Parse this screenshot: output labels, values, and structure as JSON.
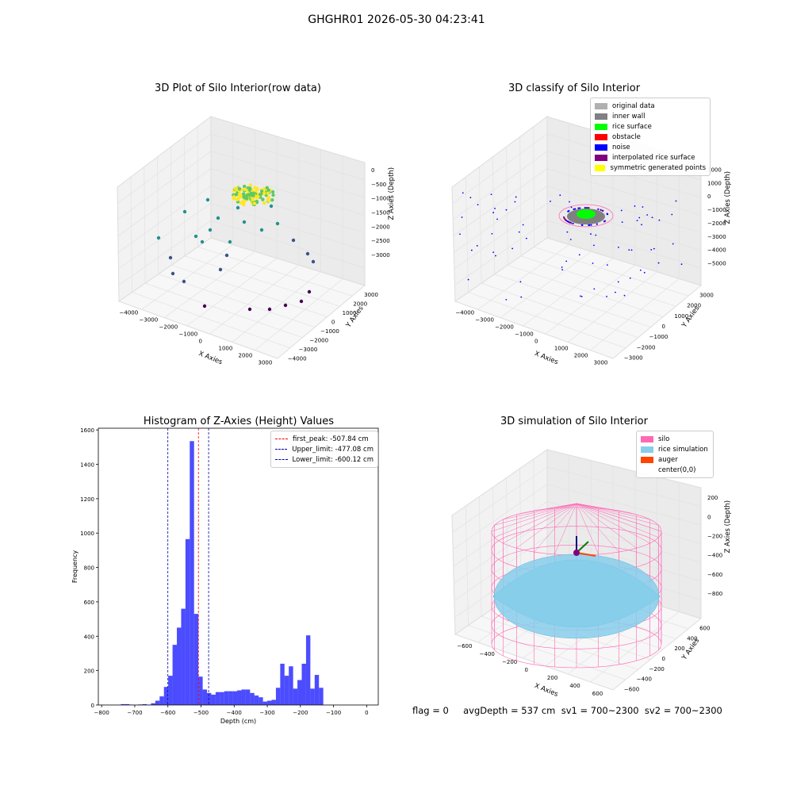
{
  "suptitle": "GHGHR01 2026-05-30 04:23:41",
  "footer": "flag = 0     avgDepth = 537 cm  sv1 = 700~2300  sv2 = 700~2300",
  "chart_data": [
    {
      "type": "scatter",
      "title": "3D Plot of Silo Interior(row data)",
      "xlabel": "X Axies",
      "ylabel": "Y Axies",
      "zlabel": "Z Axies (Depth)",
      "x_ticks": [
        "−4000",
        "−3000",
        "−2000",
        "−1000",
        "0",
        "1000",
        "2000",
        "3000"
      ],
      "y_ticks": [
        "−4000",
        "−3000",
        "−2000",
        "−1000",
        "0",
        "1000",
        "2000",
        "3000"
      ],
      "z_ticks": [
        "0",
        "−500",
        "−1000",
        "−1500",
        "−2000",
        "−2500",
        "−3000"
      ]
    },
    {
      "type": "scatter",
      "title": "3D classify of Silo Interior",
      "xlabel": "X Axies",
      "ylabel": "Y Axies",
      "zlabel": "Z Axies (Depth)",
      "x_ticks": [
        "−4000",
        "−3000",
        "−2000",
        "−1000",
        "0",
        "1000",
        "2000",
        "3000"
      ],
      "y_ticks": [
        "−3000",
        "−2000",
        "−1000",
        "0",
        "1000",
        "2000",
        "3000"
      ],
      "z_ticks": [
        "2000",
        "1000",
        "0",
        "−1000",
        "−2000",
        "−3000",
        "−4000",
        "−5000"
      ],
      "legend": [
        {
          "label": "original data",
          "color": "#b0b0b0"
        },
        {
          "label": "inner wall",
          "color": "#808080"
        },
        {
          "label": "rice surface",
          "color": "#00ff00"
        },
        {
          "label": "obstacle",
          "color": "#ff0000"
        },
        {
          "label": "noise",
          "color": "#0000ff"
        },
        {
          "label": "interpolated rice surface",
          "color": "#800080"
        },
        {
          "label": "symmetric generated points",
          "color": "#ffff00"
        }
      ]
    },
    {
      "type": "bar",
      "title": "Histogram of Z-Axies (Height) Values",
      "xlabel": "Depth (cm)",
      "ylabel": "Frequency",
      "xlim": [
        -810,
        35
      ],
      "ylim": [
        0,
        1610
      ],
      "x_ticks": [
        -800,
        -700,
        -600,
        -500,
        -400,
        -300,
        -200,
        -100,
        0
      ],
      "y_ticks": [
        0,
        200,
        400,
        600,
        800,
        1000,
        1200,
        1400,
        1600
      ],
      "bar_color": "#0000ff",
      "bins": [
        {
          "x": -820,
          "value": 0
        },
        {
          "x": -807,
          "value": 0
        },
        {
          "x": -794,
          "value": 0
        },
        {
          "x": -781,
          "value": 0
        },
        {
          "x": -768,
          "value": 0
        },
        {
          "x": -755,
          "value": 0
        },
        {
          "x": -742,
          "value": 5
        },
        {
          "x": -729,
          "value": 5
        },
        {
          "x": -716,
          "value": 2
        },
        {
          "x": -703,
          "value": 0
        },
        {
          "x": -690,
          "value": 3
        },
        {
          "x": -677,
          "value": 5
        },
        {
          "x": -664,
          "value": 2
        },
        {
          "x": -651,
          "value": 10
        },
        {
          "x": -638,
          "value": 25
        },
        {
          "x": -625,
          "value": 50
        },
        {
          "x": -612,
          "value": 105
        },
        {
          "x": -599,
          "value": 170
        },
        {
          "x": -586,
          "value": 350
        },
        {
          "x": -573,
          "value": 450
        },
        {
          "x": -560,
          "value": 560
        },
        {
          "x": -547,
          "value": 965
        },
        {
          "x": -534,
          "value": 1535
        },
        {
          "x": -521,
          "value": 530
        },
        {
          "x": -508,
          "value": 165
        },
        {
          "x": -495,
          "value": 90
        },
        {
          "x": -482,
          "value": 70
        },
        {
          "x": -469,
          "value": 60
        },
        {
          "x": -456,
          "value": 75
        },
        {
          "x": -443,
          "value": 75
        },
        {
          "x": -430,
          "value": 80
        },
        {
          "x": -417,
          "value": 80
        },
        {
          "x": -404,
          "value": 80
        },
        {
          "x": -391,
          "value": 85
        },
        {
          "x": -378,
          "value": 90
        },
        {
          "x": -365,
          "value": 90
        },
        {
          "x": -352,
          "value": 70
        },
        {
          "x": -339,
          "value": 55
        },
        {
          "x": -326,
          "value": 45
        },
        {
          "x": -313,
          "value": 20
        },
        {
          "x": -300,
          "value": 25
        },
        {
          "x": -287,
          "value": 30
        },
        {
          "x": -274,
          "value": 100
        },
        {
          "x": -261,
          "value": 240
        },
        {
          "x": -248,
          "value": 170
        },
        {
          "x": -235,
          "value": 225
        },
        {
          "x": -222,
          "value": 95
        },
        {
          "x": -209,
          "value": 145
        },
        {
          "x": -196,
          "value": 240
        },
        {
          "x": -183,
          "value": 405
        },
        {
          "x": -170,
          "value": 95
        },
        {
          "x": -157,
          "value": 175
        },
        {
          "x": -144,
          "value": 100
        }
      ],
      "bin_width": 13,
      "bins_note": "",
      "vlines": [
        {
          "x": -507.84,
          "label": "first_peak: -507.84 cm",
          "color": "#ff0000"
        },
        {
          "x": -477.08,
          "label": "Upper_limit: -477.08 cm",
          "color": "#0000aa"
        },
        {
          "x": -600.12,
          "label": "Lower_limit: -600.12 cm",
          "color": "#0000aa"
        }
      ]
    },
    {
      "type": "other",
      "title": "3D simulation of Silo Interior",
      "xlabel": "X Axies",
      "ylabel": "Y Axies",
      "zlabel": "Z Axies (Depth)",
      "x_ticks": [
        "−600",
        "−400",
        "−200",
        "0",
        "200",
        "400",
        "600"
      ],
      "y_ticks": [
        "−600",
        "−400",
        "−200",
        "0",
        "200",
        "400",
        "600"
      ],
      "z_ticks": [
        "200",
        "0",
        "−200",
        "−400",
        "−600",
        "−800"
      ],
      "legend": [
        {
          "label": "silo",
          "color": "#ff69b4"
        },
        {
          "label": "rice simulation",
          "color": "#87ceeb"
        },
        {
          "label": "auger",
          "color": "#ff4500"
        },
        {
          "label": "center(0,0)",
          "color": "#ffffff"
        }
      ]
    }
  ]
}
